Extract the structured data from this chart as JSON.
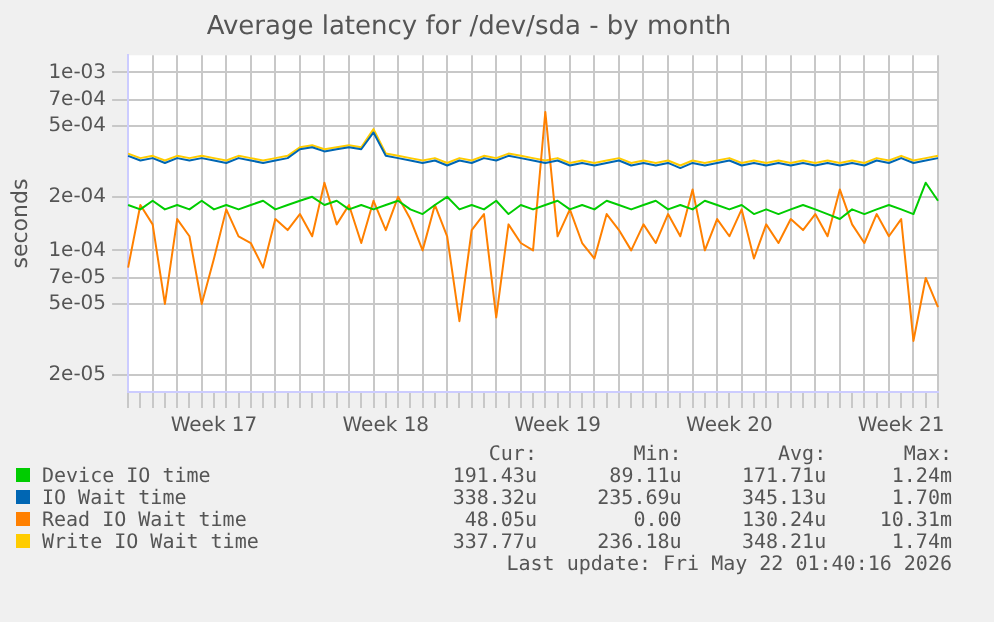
{
  "chart_data": {
    "type": "line",
    "title": "Average latency for /dev/sda - by month",
    "ylabel": "seconds",
    "categories": [
      null,
      null,
      null,
      null,
      null,
      null,
      null,
      "Week 17",
      null,
      null,
      null,
      null,
      null,
      null,
      null,
      null,
      null,
      null,
      null,
      null,
      null,
      "Week 18",
      null,
      null,
      null,
      null,
      null,
      null,
      null,
      null,
      null,
      null,
      null,
      null,
      null,
      "Week 19",
      null,
      null,
      null,
      null,
      null,
      null,
      null,
      null,
      null,
      null,
      null,
      null,
      null,
      "Week 20",
      null,
      null,
      null,
      null,
      null,
      null,
      null,
      null,
      null,
      null,
      null,
      null,
      null,
      "Week 21",
      null,
      null,
      null
    ],
    "series": [
      {
        "name": "Device IO time",
        "color": "#00cc00",
        "values": [
          0.00018,
          0.00017,
          0.00019,
          0.00017,
          0.00018,
          0.00017,
          0.00019,
          0.00017,
          0.00018,
          0.00017,
          0.00018,
          0.00019,
          0.00017,
          0.00018,
          0.00019,
          0.0002,
          0.00018,
          0.00019,
          0.00017,
          0.00018,
          0.00017,
          0.00018,
          0.00019,
          0.00017,
          0.00016,
          0.00018,
          0.0002,
          0.00017,
          0.00018,
          0.00017,
          0.00019,
          0.00016,
          0.00018,
          0.00017,
          0.00018,
          0.00019,
          0.00017,
          0.00018,
          0.00017,
          0.00019,
          0.00018,
          0.00017,
          0.00018,
          0.00019,
          0.00017,
          0.00018,
          0.00017,
          0.00019,
          0.00018,
          0.00017,
          0.00018,
          0.00016,
          0.00017,
          0.00016,
          0.00017,
          0.00018,
          0.00017,
          0.00016,
          0.00015,
          0.00017,
          0.00016,
          0.00017,
          0.00018,
          0.00017,
          0.00016,
          0.00024,
          0.00019
        ]
      },
      {
        "name": "IO Wait time",
        "color": "#0066b3",
        "values": [
          0.00034,
          0.00032,
          0.00033,
          0.00031,
          0.00033,
          0.00032,
          0.00033,
          0.00032,
          0.00031,
          0.00033,
          0.00032,
          0.00031,
          0.00032,
          0.00033,
          0.00037,
          0.00038,
          0.00036,
          0.00037,
          0.00038,
          0.00037,
          0.00046,
          0.00034,
          0.00033,
          0.00032,
          0.00031,
          0.00032,
          0.0003,
          0.00032,
          0.00031,
          0.00033,
          0.00032,
          0.00034,
          0.00033,
          0.00032,
          0.00031,
          0.00032,
          0.0003,
          0.00031,
          0.0003,
          0.00031,
          0.00032,
          0.0003,
          0.00031,
          0.0003,
          0.00031,
          0.00029,
          0.00031,
          0.0003,
          0.00031,
          0.00032,
          0.0003,
          0.00031,
          0.0003,
          0.00031,
          0.0003,
          0.00031,
          0.0003,
          0.00031,
          0.0003,
          0.00031,
          0.0003,
          0.00032,
          0.00031,
          0.00033,
          0.00031,
          0.00032,
          0.00033
        ]
      },
      {
        "name": "Read IO Wait time",
        "color": "#ff8000",
        "values": [
          8e-05,
          0.00018,
          0.00014,
          5e-05,
          0.00015,
          0.00012,
          5e-05,
          9e-05,
          0.00017,
          0.00012,
          0.00011,
          8e-05,
          0.00015,
          0.00013,
          0.00016,
          0.00012,
          0.00024,
          0.00014,
          0.00018,
          0.00011,
          0.00019,
          0.00013,
          0.0002,
          0.00015,
          0.0001,
          0.00018,
          0.00012,
          4e-05,
          0.00013,
          0.00016,
          4.2e-05,
          0.00014,
          0.00011,
          0.0001,
          0.0006,
          0.00012,
          0.00017,
          0.00011,
          9e-05,
          0.00016,
          0.00013,
          0.0001,
          0.00014,
          0.00011,
          0.00016,
          0.00012,
          0.00022,
          0.0001,
          0.00015,
          0.00012,
          0.00017,
          9e-05,
          0.00014,
          0.00011,
          0.00015,
          0.00013,
          0.00016,
          0.00012,
          0.00022,
          0.00014,
          0.00011,
          0.00016,
          0.00012,
          0.00015,
          3.1e-05,
          7e-05,
          4.8e-05
        ]
      },
      {
        "name": "Write IO Wait time",
        "color": "#ffcc00",
        "values": [
          0.00035,
          0.00033,
          0.00034,
          0.00032,
          0.00034,
          0.00033,
          0.00034,
          0.00033,
          0.00032,
          0.00034,
          0.00033,
          0.00032,
          0.00033,
          0.00034,
          0.00038,
          0.00039,
          0.00037,
          0.00038,
          0.00039,
          0.00038,
          0.00048,
          0.00035,
          0.00034,
          0.00033,
          0.00032,
          0.00033,
          0.00031,
          0.00033,
          0.00032,
          0.00034,
          0.00033,
          0.00035,
          0.00034,
          0.00033,
          0.00032,
          0.00033,
          0.00031,
          0.00032,
          0.00031,
          0.00032,
          0.00033,
          0.00031,
          0.00032,
          0.00031,
          0.00032,
          0.0003,
          0.00032,
          0.00031,
          0.00032,
          0.00033,
          0.00031,
          0.00032,
          0.00031,
          0.00032,
          0.00031,
          0.00032,
          0.00031,
          0.00032,
          0.00031,
          0.00032,
          0.00031,
          0.00033,
          0.00032,
          0.00034,
          0.00032,
          0.00033,
          0.00034
        ]
      }
    ],
    "log": "y",
    "ylim": [
      1.6e-05,
      0.00125
    ],
    "yticks": [
      {
        "value": 2e-05,
        "label": "2e-05"
      },
      {
        "value": 5e-05,
        "label": "5e-05"
      },
      {
        "value": 7e-05,
        "label": "7e-05"
      },
      {
        "value": 0.0001,
        "label": "1e-04"
      },
      {
        "value": 0.0002,
        "label": "2e-04"
      },
      {
        "value": 0.0005,
        "label": "5e-04"
      },
      {
        "value": 0.0007,
        "label": "7e-04"
      },
      {
        "value": 0.001,
        "label": "1e-03"
      }
    ],
    "grid": true,
    "legend": "bottom",
    "marker": "none",
    "line_style": "solid",
    "annotations": [
      "Cur:",
      "Min:",
      "Avg:",
      "Max:",
      "191.43u",
      "89.11u",
      "171.71u",
      "1.24m",
      "338.32u",
      "235.69u",
      "345.13u",
      "1.70m",
      "48.05u",
      "0.00",
      "130.24u",
      "10.31m",
      "337.77u",
      "236.18u",
      "348.21u",
      "1.74m",
      "Last update: Fri May 22 01:40:16 2026"
    ]
  }
}
